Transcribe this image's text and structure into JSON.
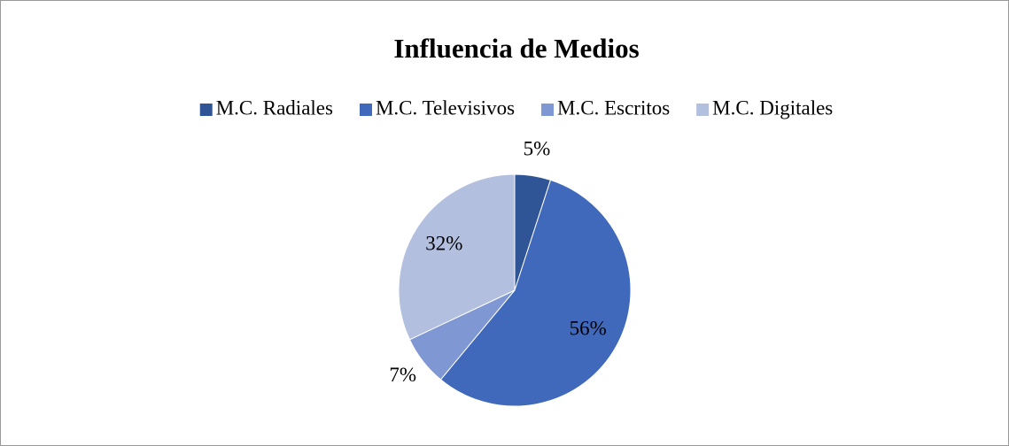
{
  "chart_data": {
    "type": "pie",
    "title": "Influencia de Medios",
    "categories": [
      "M.C. Radiales",
      "M.C. Televisivos",
      "M.C. Escritos",
      "M.C. Digitales"
    ],
    "values": [
      5,
      56,
      7,
      32
    ],
    "value_labels": [
      "5%",
      "56%",
      "7%",
      "32%"
    ],
    "colors": [
      "#2f5597",
      "#4069bb",
      "#7f97d2",
      "#b3bfdf"
    ],
    "legend": "top"
  }
}
